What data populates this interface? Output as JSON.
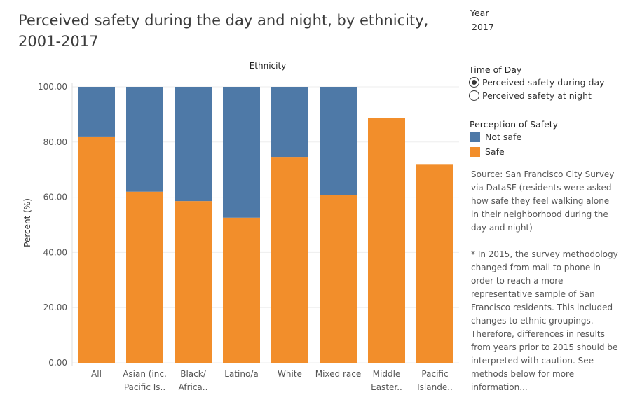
{
  "title": "Perceived safety during the day and night, by ethnicity, 2001-2017",
  "filter": {
    "label": "Year",
    "value": "2017"
  },
  "time_of_day": {
    "label": "Time of Day",
    "options": [
      {
        "label": "Perceived safety during day",
        "selected": true
      },
      {
        "label": "Perceived safety at night",
        "selected": false
      }
    ]
  },
  "legend": {
    "title": "Perception of Safety",
    "items": [
      {
        "label": "Not safe",
        "color": "#4e79a7"
      },
      {
        "label": "Safe",
        "color": "#f28e2b"
      }
    ]
  },
  "notes": {
    "source": "Source: San Francisco City Survey via DataSF (residents were asked how safe they feel walking alone in their neighborhood during the day and night)",
    "caveat": "* In 2015, the survey methodology changed from mail to phone in order to reach a more representative sample of San Francisco residents. This included changes to ethnic groupings. Therefore, differences in results from years prior to 2015 should be interpreted with caution. See methods below for more information..."
  },
  "chart_data": {
    "type": "bar",
    "stacked": true,
    "title": "Perceived safety during the day and night, by ethnicity, 2001-2017",
    "column_header": "Ethnicity",
    "xlabel": "",
    "ylabel": "Percent (%)",
    "ylim": [
      0,
      100
    ],
    "y_ticks": [
      "0.00",
      "20.00",
      "40.00",
      "60.00",
      "80.00",
      "100.00"
    ],
    "categories": [
      [
        "All"
      ],
      [
        "Asian (inc.",
        "Pacific Is.."
      ],
      [
        "Black/",
        "Africa.."
      ],
      [
        "Latino/a"
      ],
      [
        "White"
      ],
      [
        "Mixed race"
      ],
      [
        "Middle",
        "Easter.."
      ],
      [
        "Pacific",
        "Islande.."
      ]
    ],
    "series": [
      {
        "name": "Safe",
        "color": "#f28e2b",
        "values": [
          82,
          62,
          58.6,
          52.6,
          74.6,
          60.8,
          88.6,
          72
        ]
      },
      {
        "name": "Not safe",
        "color": "#4e79a7",
        "values": [
          18,
          38,
          41.4,
          47.4,
          25.4,
          39.2,
          0,
          0
        ]
      }
    ],
    "grid": true
  }
}
